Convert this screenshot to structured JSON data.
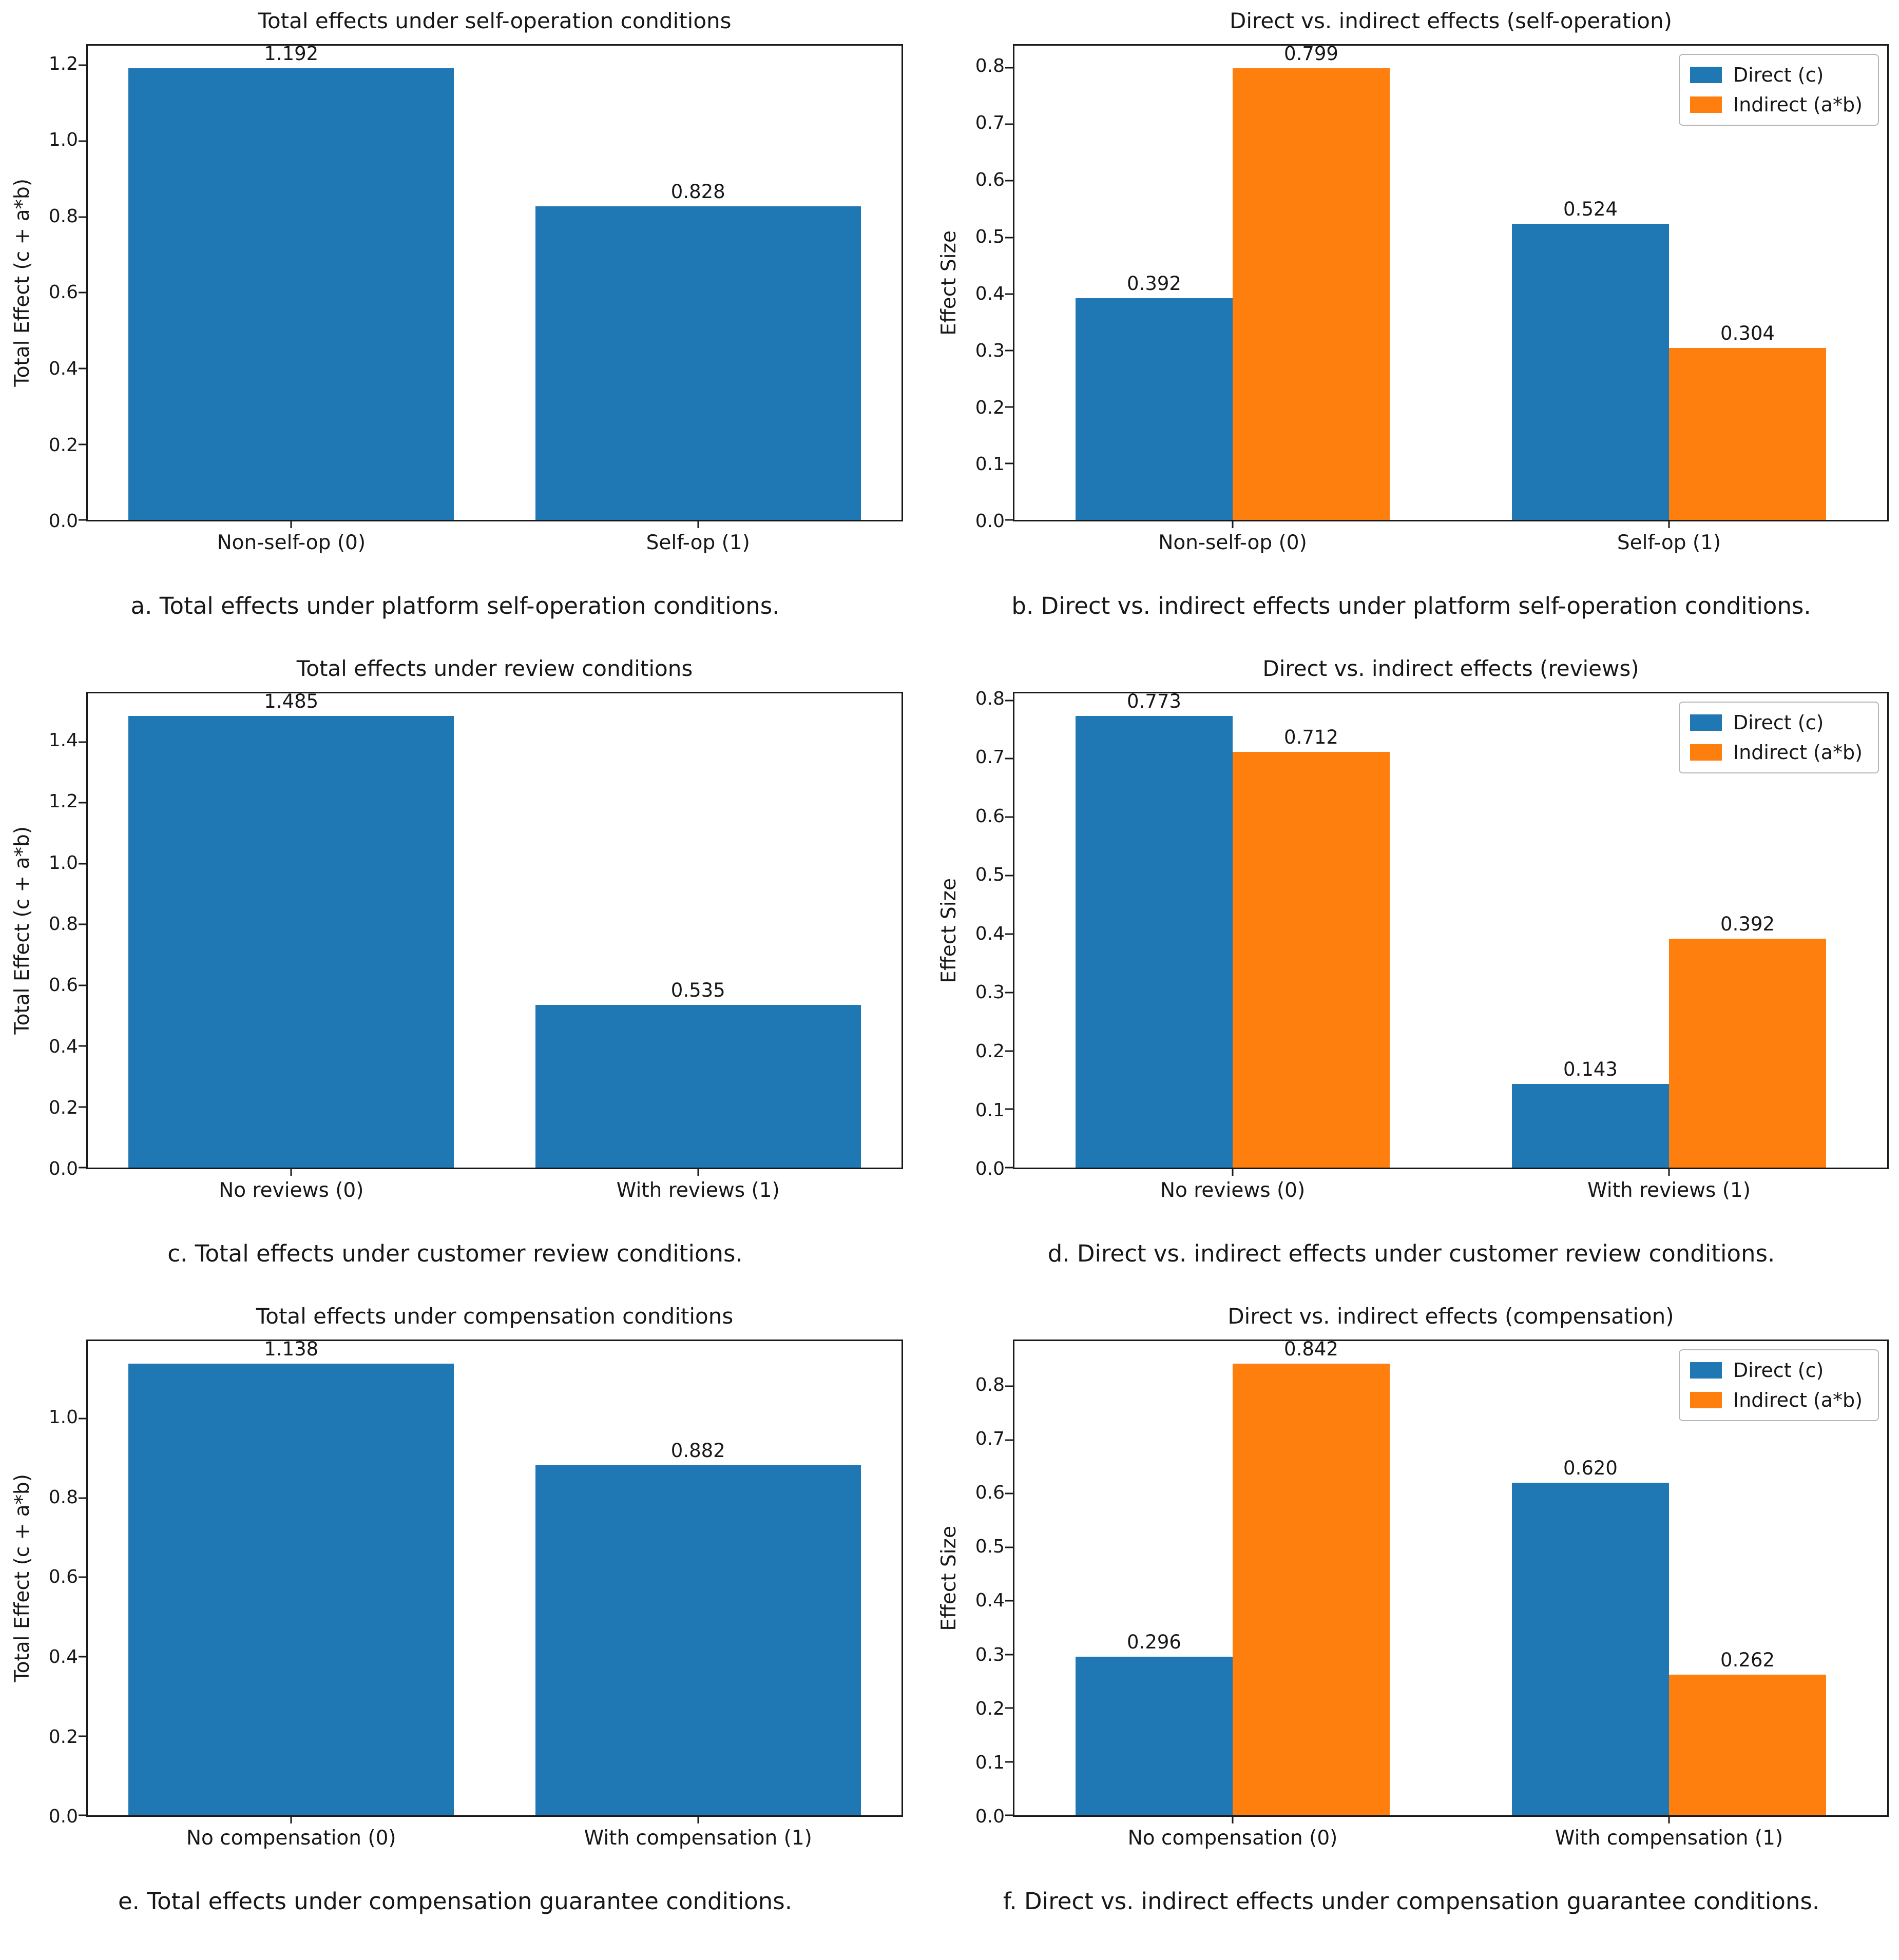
{
  "figure": {
    "background": "#ffffff",
    "direct_color": "#1f77b4",
    "indirect_color": "#ff7f0e"
  },
  "chart_data": [
    {
      "id": "a",
      "type": "bar",
      "title": "Total effects under self-operation conditions",
      "ylabel": "Total Effect (c + a*b)",
      "xlabel": "",
      "categories": [
        "Non-self-op (0)",
        "Self-op (1)"
      ],
      "values": [
        1.192,
        0.828
      ],
      "value_labels": [
        "1.192",
        "0.828"
      ],
      "bar_color": "#1f77b4",
      "ylim": [
        0,
        1.2516
      ],
      "ytick_step": 0.2,
      "grid": false,
      "caption": "a. Total effects under platform self-operation conditions."
    },
    {
      "id": "b",
      "type": "bar",
      "title": "Direct vs. indirect effects (self-operation)",
      "ylabel": "Effect Size",
      "xlabel": "",
      "categories": [
        "Non-self-op (0)",
        "Self-op (1)"
      ],
      "series": [
        {
          "name": "Direct (c)",
          "color": "#1f77b4",
          "values": [
            0.392,
            0.524
          ],
          "value_labels": [
            "0.392",
            "0.524"
          ]
        },
        {
          "name": "Indirect (a*b)",
          "color": "#ff7f0e",
          "values": [
            0.799,
            0.304
          ],
          "value_labels": [
            "0.799",
            "0.304"
          ]
        }
      ],
      "ylim": [
        0,
        0.839
      ],
      "ytick_step": 0.1,
      "grid": false,
      "legend_position": "upper right",
      "caption": "b. Direct vs. indirect effects under platform self-operation conditions."
    },
    {
      "id": "c",
      "type": "bar",
      "title": "Total effects under review conditions",
      "ylabel": "Total Effect (c + a*b)",
      "xlabel": "",
      "categories": [
        "No reviews (0)",
        "With reviews (1)"
      ],
      "values": [
        1.485,
        0.535
      ],
      "value_labels": [
        "1.485",
        "0.535"
      ],
      "bar_color": "#1f77b4",
      "ylim": [
        0,
        1.5593
      ],
      "ytick_step": 0.2,
      "grid": false,
      "caption": "c. Total effects under customer review conditions."
    },
    {
      "id": "d",
      "type": "bar",
      "title": "Direct vs. indirect effects (reviews)",
      "ylabel": "Effect Size",
      "xlabel": "",
      "categories": [
        "No reviews (0)",
        "With reviews (1)"
      ],
      "series": [
        {
          "name": "Direct (c)",
          "color": "#1f77b4",
          "values": [
            0.773,
            0.143
          ],
          "value_labels": [
            "0.773",
            "0.143"
          ]
        },
        {
          "name": "Indirect (a*b)",
          "color": "#ff7f0e",
          "values": [
            0.712,
            0.392
          ],
          "value_labels": [
            "0.712",
            "0.392"
          ]
        }
      ],
      "ylim": [
        0,
        0.8117
      ],
      "ytick_step": 0.1,
      "grid": false,
      "legend_position": "upper right",
      "caption": "d. Direct vs. indirect effects under customer review conditions."
    },
    {
      "id": "e",
      "type": "bar",
      "title": "Total effects under compensation conditions",
      "ylabel": "Total Effect (c + a*b)",
      "xlabel": "",
      "categories": [
        "No compensation (0)",
        "With compensation (1)"
      ],
      "values": [
        1.138,
        0.882
      ],
      "value_labels": [
        "1.138",
        "0.882"
      ],
      "bar_color": "#1f77b4",
      "ylim": [
        0,
        1.1949
      ],
      "ytick_step": 0.2,
      "grid": false,
      "caption": "e. Total effects under compensation guarantee conditions."
    },
    {
      "id": "f",
      "type": "bar",
      "title": "Direct vs. indirect effects (compensation)",
      "ylabel": "Effect Size",
      "xlabel": "",
      "categories": [
        "No compensation (0)",
        "With compensation (1)"
      ],
      "series": [
        {
          "name": "Direct (c)",
          "color": "#1f77b4",
          "values": [
            0.296,
            0.62
          ],
          "value_labels": [
            "0.296",
            "0.620"
          ]
        },
        {
          "name": "Indirect (a*b)",
          "color": "#ff7f0e",
          "values": [
            0.842,
            0.262
          ],
          "value_labels": [
            "0.842",
            "0.262"
          ]
        }
      ],
      "ylim": [
        0,
        0.8841
      ],
      "ytick_step": 0.1,
      "grid": false,
      "legend_position": "upper right",
      "caption": "f. Direct vs. indirect effects under compensation guarantee conditions."
    }
  ]
}
